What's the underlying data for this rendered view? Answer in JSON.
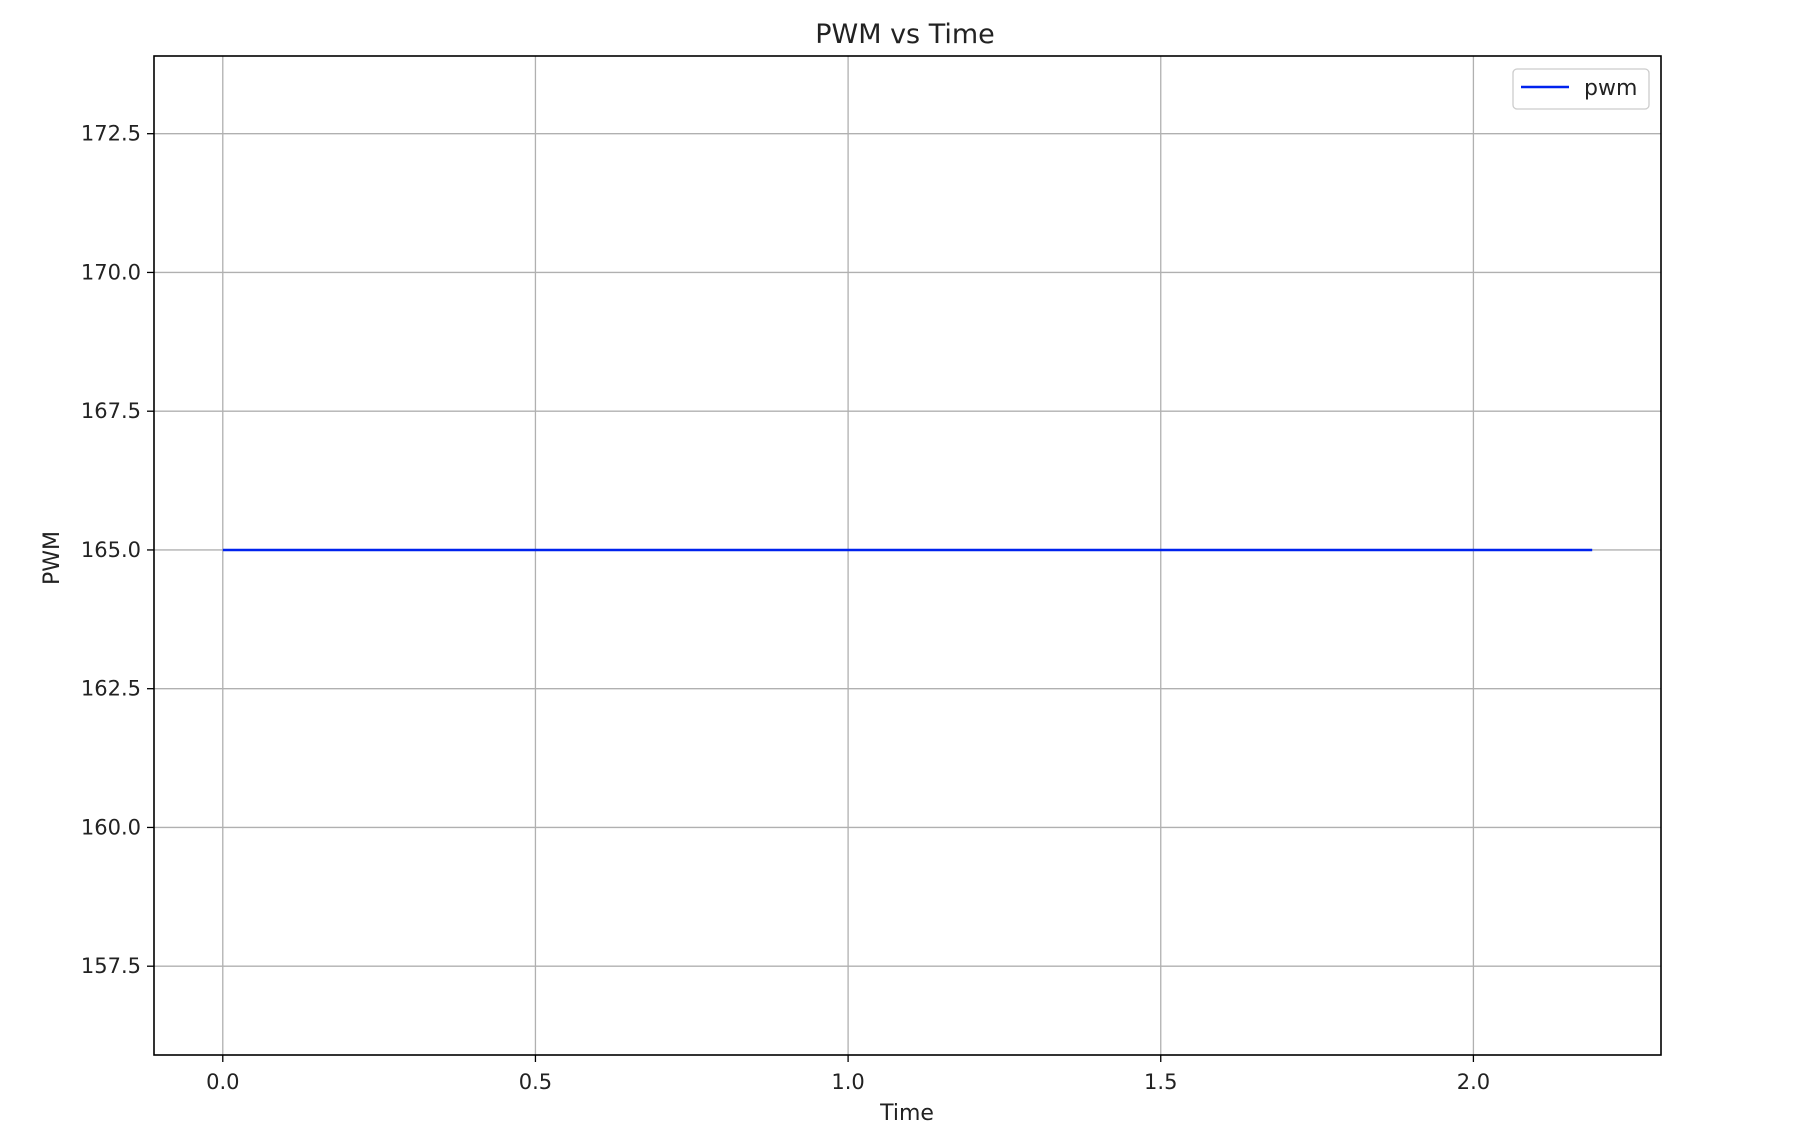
{
  "chart_data": {
    "type": "line",
    "title": "PWM vs Time",
    "xlabel": "Time",
    "ylabel": "PWM",
    "xlim": [
      -0.11,
      2.3
    ],
    "ylim": [
      155.9,
      173.9
    ],
    "xticks": [
      0.0,
      0.5,
      1.0,
      1.5,
      2.0
    ],
    "xtick_labels": [
      "0.0",
      "0.5",
      "1.0",
      "1.5",
      "2.0"
    ],
    "yticks": [
      157.5,
      160.0,
      162.5,
      165.0,
      167.5,
      170.0,
      172.5
    ],
    "ytick_labels": [
      "157.5",
      "160.0",
      "162.5",
      "165.0",
      "167.5",
      "170.0",
      "172.5"
    ],
    "grid": true,
    "legend_position": "top-right",
    "series": [
      {
        "name": "pwm",
        "color": "#0022ee",
        "x": [
          0.0,
          2.19
        ],
        "y": [
          165.0,
          165.0
        ]
      }
    ]
  }
}
